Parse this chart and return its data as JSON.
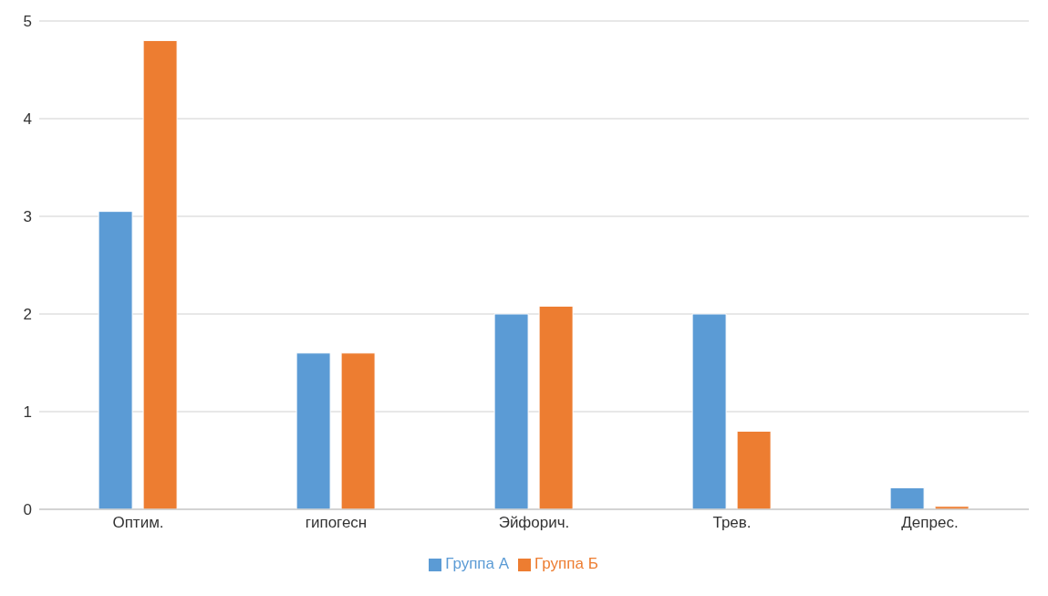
{
  "chart_data": {
    "type": "bar",
    "categories": [
      "Оптим.",
      "гипогесн",
      "Эйфорич.",
      "Трев.",
      "Депрес."
    ],
    "series": [
      {
        "name": "Группа А",
        "color": "#5b9bd5",
        "values": [
          3.05,
          1.6,
          2.0,
          2.0,
          0.22
        ]
      },
      {
        "name": "Группа Б",
        "color": "#ed7d31",
        "values": [
          4.8,
          1.6,
          2.08,
          0.8,
          0.03
        ]
      }
    ],
    "ylim": [
      0,
      5
    ],
    "yticks": [
      0,
      1,
      2,
      3,
      4,
      5
    ],
    "grid": "y",
    "legend": "bottom"
  }
}
